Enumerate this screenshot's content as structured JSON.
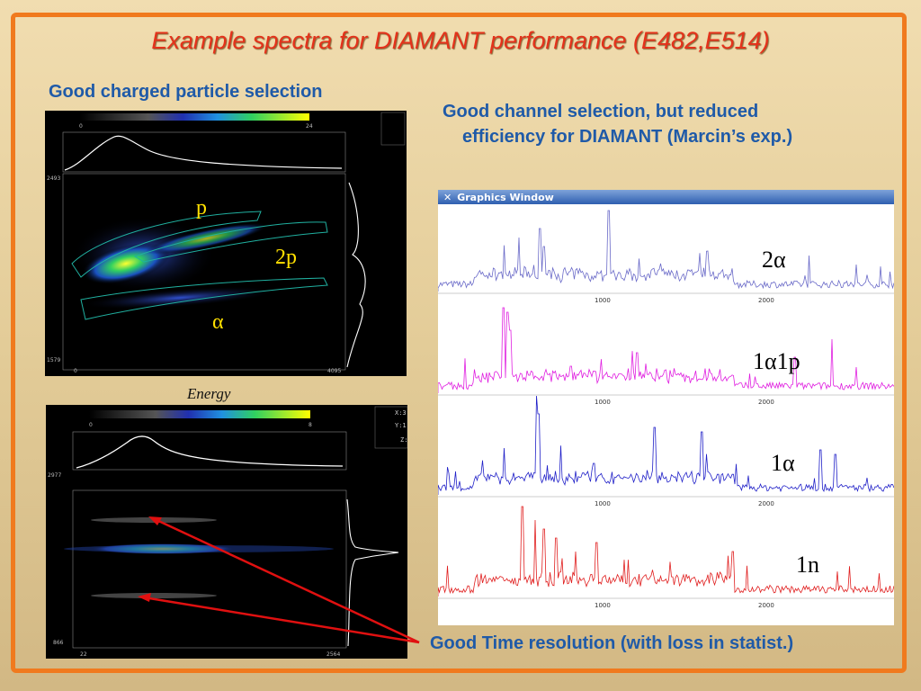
{
  "slide": {
    "title": "Example spectra for DIAMANT performance (E482,E514)",
    "caption_left": "Good charged particle selection",
    "caption_right_line1": "Good channel selection, but reduced",
    "caption_right_line2": "efficiency for DIAMANT (Marcin’s exp.)",
    "caption_bottom": "Good Time resolution (with loss in statist.)",
    "energy_label": "Energy"
  },
  "plot1": {
    "colorbar_min": "0",
    "colorbar_max": "24",
    "y_top": "2493",
    "y_bottom": "1579",
    "x_left": "0",
    "x_right": "4095",
    "labels": {
      "p": "p",
      "two_p": "2p",
      "alpha": "α"
    }
  },
  "plot2": {
    "colorbar_min": "0",
    "colorbar_max": "8",
    "y_top": "2977",
    "y_bottom": "866",
    "x_left": "22",
    "x_right": "2564",
    "readouts": [
      "X:3",
      "Y:1",
      "Z:"
    ]
  },
  "graphics_window": {
    "title": "Graphics Window",
    "ticks": [
      "1000",
      "2000"
    ],
    "spectra": [
      {
        "label": "2α",
        "color": "#6a6ac8"
      },
      {
        "label": "1α1p",
        "color": "#e01ee0"
      },
      {
        "label": "1α",
        "color": "#2020c8"
      },
      {
        "label": "1n",
        "color": "#e01e1e"
      }
    ]
  },
  "colors": {
    "title": "#e4321b",
    "caption": "#1f5aa8",
    "frame": "#f07a1e",
    "arrow": "#e01010"
  }
}
